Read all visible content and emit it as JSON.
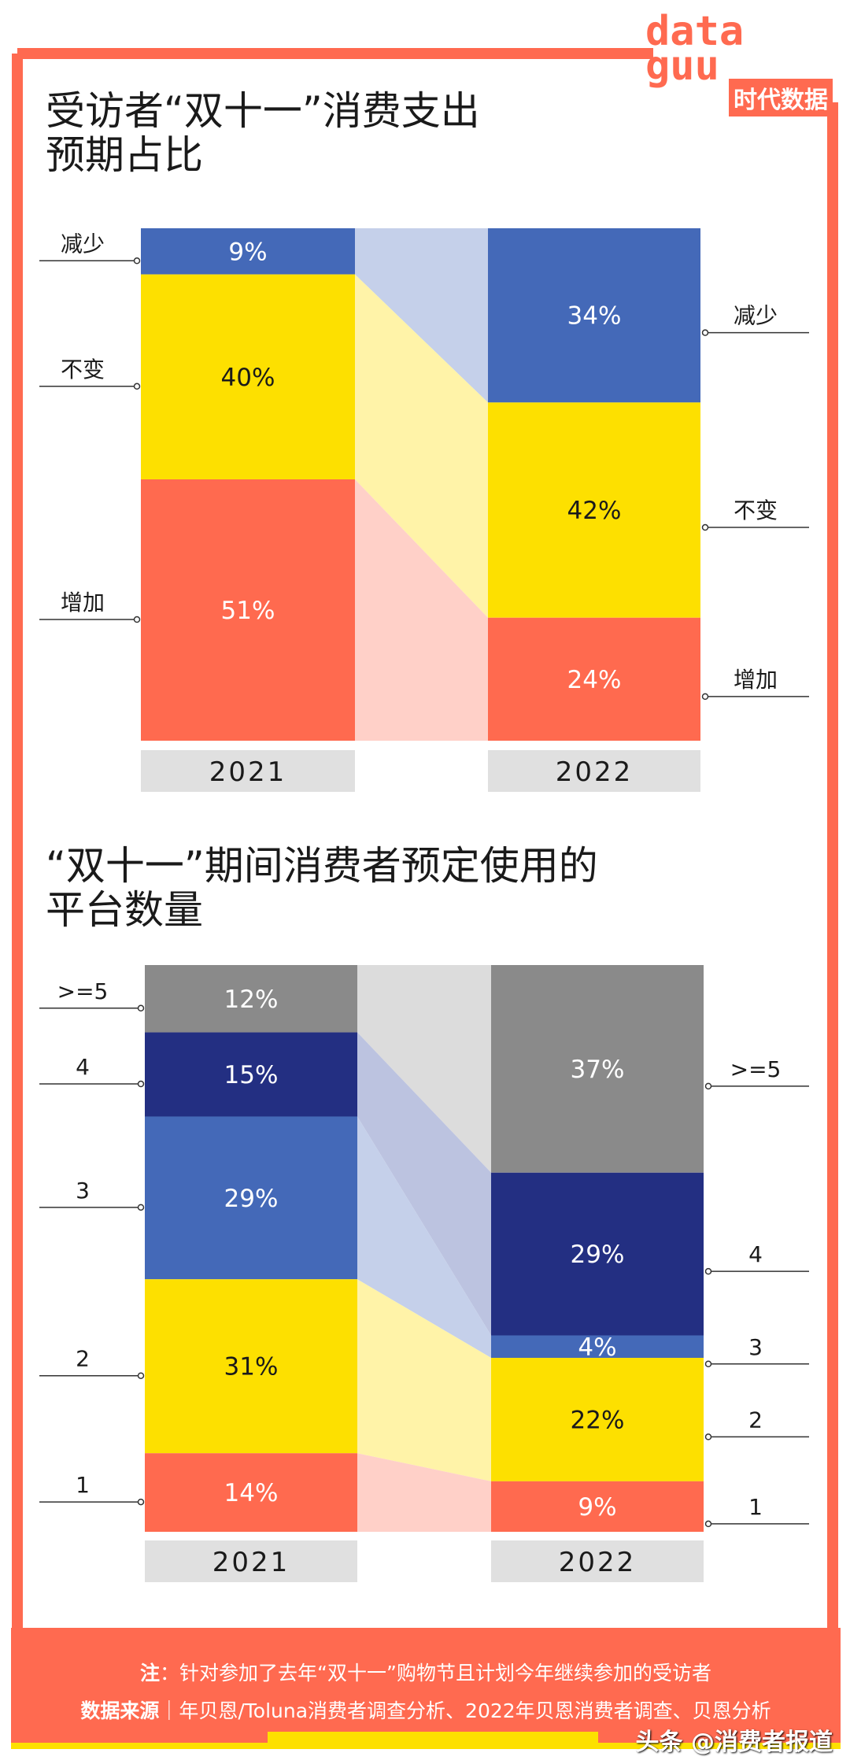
{
  "logo": {
    "text_top": "data",
    "text_bottom": "guu",
    "cn": "时代数据"
  },
  "chart_data": [
    {
      "type": "bar",
      "stacked": true,
      "title_lines": [
        "受访者“双十一”消费支出",
        "预期占比"
      ],
      "categories": [
        "2021",
        "2022"
      ],
      "series": [
        {
          "name": "减少",
          "values": [
            9,
            34
          ],
          "color": "#4469b8",
          "flow_color": "#c5d0ea"
        },
        {
          "name": "不变",
          "values": [
            40,
            42
          ],
          "color": "#fde000",
          "flow_color": "#fff3a8"
        },
        {
          "name": "增加",
          "values": [
            51,
            24
          ],
          "color": "#ff6a4f",
          "flow_color": "#ffd0c8"
        }
      ],
      "value_suffix": "%"
    },
    {
      "type": "bar",
      "stacked": true,
      "title_lines": [
        "“双十一”期间消费者预定使用的",
        "平台数量"
      ],
      "categories": [
        "2021",
        "2022"
      ],
      "series": [
        {
          "name": ">=5",
          "values": [
            12,
            37
          ],
          "color": "#8a8a8a",
          "flow_color": "#dcdcdc"
        },
        {
          "name": "4",
          "values": [
            15,
            29
          ],
          "color": "#232f82",
          "flow_color": "#bcc3e0"
        },
        {
          "name": "3",
          "values": [
            29,
            4
          ],
          "color": "#4469b8",
          "flow_color": "#c5d0ea"
        },
        {
          "name": "2",
          "values": [
            31,
            22
          ],
          "color": "#fde000",
          "flow_color": "#fff3a8"
        },
        {
          "name": "1",
          "values": [
            14,
            9
          ],
          "color": "#ff6a4f",
          "flow_color": "#ffd0c8"
        }
      ],
      "value_suffix": "%"
    }
  ],
  "footer": {
    "note_label": "注",
    "note_text": "：针对参加了去年“双十一”购物节且计划今年继续参加的受访者",
    "source_label": "数据来源",
    "source_text": "｜年贝恩/Toluna消费者调查分析、2022年贝恩消费者调查、贝恩分析",
    "credit": "头条 @消费者报道"
  },
  "colors": {
    "frame": "#ff6a50",
    "accent_yellow": "#fde000",
    "year_box": "#e0e0e0"
  }
}
